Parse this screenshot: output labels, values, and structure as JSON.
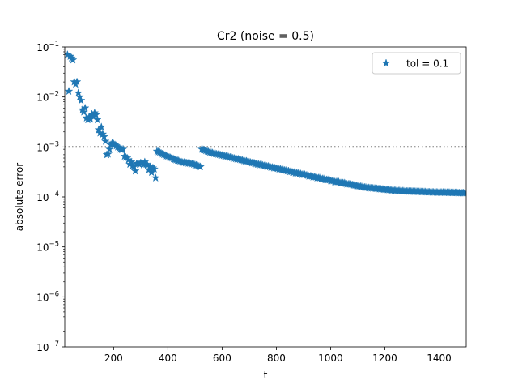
{
  "chart_data": {
    "type": "scatter",
    "title": "Cr2 (noise = 0.5)",
    "xlabel": "t",
    "ylabel": "absolute error",
    "xlim": [
      20,
      1500
    ],
    "ylim_log10": [
      -7,
      -1
    ],
    "yscale": "log",
    "x_ticks": [
      200,
      400,
      600,
      800,
      1000,
      1200,
      1400
    ],
    "x_tick_labels": [
      "200",
      "400",
      "600",
      "800",
      "1000",
      "1200",
      "1400"
    ],
    "y_tick_exponents": [
      -7,
      -6,
      -5,
      -4,
      -3,
      -2,
      -1
    ],
    "y_tick_base": "10",
    "y_tick_labels": [
      "−7",
      "−6",
      "−5",
      "−4",
      "−3",
      "−2",
      "−1"
    ],
    "tolerance_line": {
      "y": 0.001,
      "style": "dotted",
      "color": "#000000"
    },
    "legend": {
      "position": "top-right",
      "label": "tol = 0.1"
    },
    "marker": {
      "shape": "star",
      "color": "#1f77b4"
    },
    "series": [
      {
        "name": "tol = 0.1",
        "points": [
          [
            30,
            0.07
          ],
          [
            35,
            0.013
          ],
          [
            40,
            0.065
          ],
          [
            45,
            0.06
          ],
          [
            50,
            0.055
          ],
          [
            55,
            0.02
          ],
          [
            60,
            0.018
          ],
          [
            65,
            0.02
          ],
          [
            70,
            0.012
          ],
          [
            75,
            0.01
          ],
          [
            80,
            0.0085
          ],
          [
            85,
            0.0055
          ],
          [
            90,
            0.005
          ],
          [
            95,
            0.006
          ],
          [
            100,
            0.0038
          ],
          [
            105,
            0.0035
          ],
          [
            110,
            0.004
          ],
          [
            115,
            0.0036
          ],
          [
            120,
            0.0045
          ],
          [
            125,
            0.0042
          ],
          [
            130,
            0.0048
          ],
          [
            135,
            0.0044
          ],
          [
            140,
            0.0035
          ],
          [
            145,
            0.0022
          ],
          [
            150,
            0.0019
          ],
          [
            155,
            0.0025
          ],
          [
            160,
            0.0018
          ],
          [
            165,
            0.0016
          ],
          [
            170,
            0.0013
          ],
          [
            175,
            0.0007
          ],
          [
            180,
            0.00072
          ],
          [
            185,
            0.0009
          ],
          [
            190,
            0.0011
          ],
          [
            195,
            0.0012
          ],
          [
            200,
            0.00115
          ],
          [
            205,
            0.0011
          ],
          [
            210,
            0.00105
          ],
          [
            215,
            0.001
          ],
          [
            220,
            0.00095
          ],
          [
            225,
            0.0009
          ],
          [
            230,
            0.00088
          ],
          [
            235,
            0.0009
          ],
          [
            240,
            0.00065
          ],
          [
            245,
            0.00062
          ],
          [
            250,
            0.0006
          ],
          [
            255,
            0.00055
          ],
          [
            260,
            0.00045
          ],
          [
            265,
            0.0005
          ],
          [
            270,
            0.00042
          ],
          [
            275,
            0.0004
          ],
          [
            280,
            0.00033
          ],
          [
            285,
            0.00046
          ],
          [
            290,
            0.00047
          ],
          [
            295,
            0.00045
          ],
          [
            300,
            0.00048
          ],
          [
            305,
            0.00047
          ],
          [
            310,
            0.00044
          ],
          [
            315,
            0.0005
          ],
          [
            320,
            0.00045
          ],
          [
            325,
            0.00043
          ],
          [
            330,
            0.00035
          ],
          [
            335,
            0.0004
          ],
          [
            340,
            0.00031
          ],
          [
            345,
            0.00038
          ],
          [
            350,
            0.00036
          ],
          [
            355,
            0.00024
          ],
          [
            360,
            0.00082
          ],
          [
            365,
            0.0008
          ],
          [
            370,
            0.00078
          ],
          [
            375,
            0.00075
          ],
          [
            380,
            0.00072
          ],
          [
            385,
            0.0007
          ],
          [
            390,
            0.00068
          ],
          [
            395,
            0.00066
          ],
          [
            400,
            0.00065
          ],
          [
            405,
            0.00062
          ],
          [
            410,
            0.00061
          ],
          [
            415,
            0.0006
          ],
          [
            420,
            0.00058
          ],
          [
            425,
            0.00056
          ],
          [
            430,
            0.00055
          ],
          [
            435,
            0.00054
          ],
          [
            440,
            0.00053
          ],
          [
            445,
            0.00052
          ],
          [
            450,
            0.0005
          ],
          [
            455,
            0.00049
          ],
          [
            460,
            0.00049
          ],
          [
            465,
            0.00048
          ],
          [
            470,
            0.00048
          ],
          [
            475,
            0.00047
          ],
          [
            480,
            0.00047
          ],
          [
            485,
            0.00046
          ],
          [
            490,
            0.00046
          ],
          [
            495,
            0.00045
          ],
          [
            500,
            0.00044
          ],
          [
            505,
            0.00043
          ],
          [
            510,
            0.00042
          ],
          [
            515,
            0.00041
          ],
          [
            520,
            0.0004
          ],
          [
            525,
            0.0009
          ],
          [
            530,
            0.00088
          ],
          [
            535,
            0.00086
          ],
          [
            540,
            0.00084
          ],
          [
            545,
            0.00082
          ],
          [
            550,
            0.0008
          ],
          [
            555,
            0.00078
          ],
          [
            560,
            0.00077
          ],
          [
            565,
            0.00076
          ],
          [
            570,
            0.00074
          ],
          [
            575,
            0.00073
          ],
          [
            580,
            0.00072
          ],
          [
            585,
            0.00071
          ],
          [
            590,
            0.0007
          ],
          [
            595,
            0.00069
          ],
          [
            600,
            0.00068
          ],
          [
            605,
            0.00067
          ],
          [
            610,
            0.00066
          ],
          [
            615,
            0.00065
          ],
          [
            620,
            0.00064
          ],
          [
            625,
            0.00063
          ],
          [
            630,
            0.00062
          ],
          [
            635,
            0.00061
          ],
          [
            640,
            0.0006
          ],
          [
            645,
            0.00059
          ],
          [
            650,
            0.00058
          ],
          [
            655,
            0.00057
          ],
          [
            660,
            0.00057
          ],
          [
            665,
            0.00056
          ],
          [
            670,
            0.00055
          ],
          [
            675,
            0.00054
          ],
          [
            680,
            0.00053
          ],
          [
            685,
            0.00052
          ],
          [
            690,
            0.00052
          ],
          [
            695,
            0.00051
          ],
          [
            700,
            0.0005
          ],
          [
            705,
            0.00049
          ],
          [
            710,
            0.00048
          ],
          [
            715,
            0.00048
          ],
          [
            720,
            0.00047
          ],
          [
            725,
            0.00046
          ],
          [
            730,
            0.00045
          ],
          [
            735,
            0.00045
          ],
          [
            740,
            0.00044
          ],
          [
            745,
            0.00044
          ],
          [
            750,
            0.00043
          ],
          [
            755,
            0.00042
          ],
          [
            760,
            0.00042
          ],
          [
            765,
            0.00041
          ],
          [
            770,
            0.00041
          ],
          [
            775,
            0.0004
          ],
          [
            780,
            0.00039
          ],
          [
            785,
            0.00039
          ],
          [
            790,
            0.00038
          ],
          [
            795,
            0.00038
          ],
          [
            800,
            0.00037
          ],
          [
            805,
            0.00037
          ],
          [
            810,
            0.00036
          ],
          [
            815,
            0.00036
          ],
          [
            820,
            0.00035
          ],
          [
            825,
            0.00035
          ],
          [
            830,
            0.00034
          ],
          [
            835,
            0.00034
          ],
          [
            840,
            0.00033
          ],
          [
            845,
            0.00033
          ],
          [
            850,
            0.00032
          ],
          [
            855,
            0.00032
          ],
          [
            860,
            0.00031
          ],
          [
            865,
            0.00031
          ],
          [
            870,
            0.0003
          ],
          [
            875,
            0.0003
          ],
          [
            880,
            0.0003
          ],
          [
            885,
            0.00029
          ],
          [
            890,
            0.00029
          ],
          [
            895,
            0.00028
          ],
          [
            900,
            0.00028
          ],
          [
            905,
            0.00028
          ],
          [
            910,
            0.00027
          ],
          [
            915,
            0.00027
          ],
          [
            920,
            0.00026
          ],
          [
            925,
            0.00026
          ],
          [
            930,
            0.00026
          ],
          [
            935,
            0.00025
          ],
          [
            940,
            0.00025
          ],
          [
            945,
            0.00025
          ],
          [
            950,
            0.00024
          ],
          [
            955,
            0.00024
          ],
          [
            960,
            0.00024
          ],
          [
            965,
            0.00023
          ],
          [
            970,
            0.00023
          ],
          [
            975,
            0.00023
          ],
          [
            980,
            0.00022
          ],
          [
            985,
            0.00022
          ],
          [
            990,
            0.00022
          ],
          [
            995,
            0.00022
          ],
          [
            1000,
            0.00021
          ],
          [
            1005,
            0.00021
          ],
          [
            1010,
            0.00021
          ],
          [
            1015,
            0.0002
          ],
          [
            1020,
            0.0002
          ],
          [
            1025,
            0.0002
          ],
          [
            1030,
            0.0002
          ],
          [
            1035,
            0.00019
          ],
          [
            1040,
            0.00019
          ],
          [
            1045,
            0.00019
          ],
          [
            1050,
            0.00019
          ],
          [
            1055,
            0.000185
          ],
          [
            1060,
            0.00018
          ],
          [
            1065,
            0.00018
          ],
          [
            1070,
            0.00018
          ],
          [
            1075,
            0.000178
          ],
          [
            1080,
            0.000175
          ],
          [
            1085,
            0.000172
          ],
          [
            1090,
            0.00017
          ],
          [
            1095,
            0.000168
          ],
          [
            1100,
            0.000166
          ],
          [
            1105,
            0.000164
          ],
          [
            1110,
            0.000162
          ],
          [
            1115,
            0.00016
          ],
          [
            1120,
            0.000158
          ],
          [
            1125,
            0.000156
          ],
          [
            1130,
            0.000155
          ],
          [
            1135,
            0.000154
          ],
          [
            1140,
            0.000152
          ],
          [
            1145,
            0.000151
          ],
          [
            1150,
            0.00015
          ],
          [
            1155,
            0.000149
          ],
          [
            1160,
            0.000148
          ],
          [
            1165,
            0.000147
          ],
          [
            1170,
            0.000146
          ],
          [
            1175,
            0.000145
          ],
          [
            1180,
            0.000144
          ],
          [
            1185,
            0.000143
          ],
          [
            1190,
            0.000142
          ],
          [
            1195,
            0.000141
          ],
          [
            1200,
            0.00014
          ],
          [
            1205,
            0.000139
          ],
          [
            1210,
            0.000139
          ],
          [
            1215,
            0.000138
          ],
          [
            1220,
            0.000137
          ],
          [
            1225,
            0.000136
          ],
          [
            1230,
            0.000136
          ],
          [
            1235,
            0.000135
          ],
          [
            1240,
            0.000134
          ],
          [
            1245,
            0.000134
          ],
          [
            1250,
            0.000133
          ],
          [
            1255,
            0.000133
          ],
          [
            1260,
            0.000132
          ],
          [
            1265,
            0.000132
          ],
          [
            1270,
            0.000131
          ],
          [
            1275,
            0.000131
          ],
          [
            1280,
            0.00013
          ],
          [
            1285,
            0.00013
          ],
          [
            1290,
            0.000129
          ],
          [
            1295,
            0.000129
          ],
          [
            1300,
            0.000129
          ],
          [
            1305,
            0.000128
          ],
          [
            1310,
            0.000128
          ],
          [
            1315,
            0.000128
          ],
          [
            1320,
            0.000127
          ],
          [
            1325,
            0.000127
          ],
          [
            1330,
            0.000127
          ],
          [
            1335,
            0.000126
          ],
          [
            1340,
            0.000126
          ],
          [
            1345,
            0.000126
          ],
          [
            1350,
            0.000126
          ],
          [
            1355,
            0.000125
          ],
          [
            1360,
            0.000125
          ],
          [
            1365,
            0.000125
          ],
          [
            1370,
            0.000125
          ],
          [
            1375,
            0.000124
          ],
          [
            1380,
            0.000124
          ],
          [
            1385,
            0.000124
          ],
          [
            1390,
            0.000124
          ],
          [
            1395,
            0.000123
          ],
          [
            1400,
            0.000123
          ],
          [
            1405,
            0.000123
          ],
          [
            1410,
            0.000123
          ],
          [
            1415,
            0.000123
          ],
          [
            1420,
            0.000122
          ],
          [
            1425,
            0.000122
          ],
          [
            1430,
            0.000122
          ],
          [
            1435,
            0.000122
          ],
          [
            1440,
            0.000122
          ],
          [
            1445,
            0.000121
          ],
          [
            1450,
            0.000121
          ],
          [
            1455,
            0.000121
          ],
          [
            1460,
            0.000121
          ],
          [
            1465,
            0.000121
          ],
          [
            1470,
            0.00012
          ],
          [
            1475,
            0.00012
          ],
          [
            1480,
            0.00012
          ],
          [
            1485,
            0.00012
          ],
          [
            1490,
            0.00012
          ],
          [
            1495,
            0.00012
          ]
        ]
      }
    ]
  }
}
